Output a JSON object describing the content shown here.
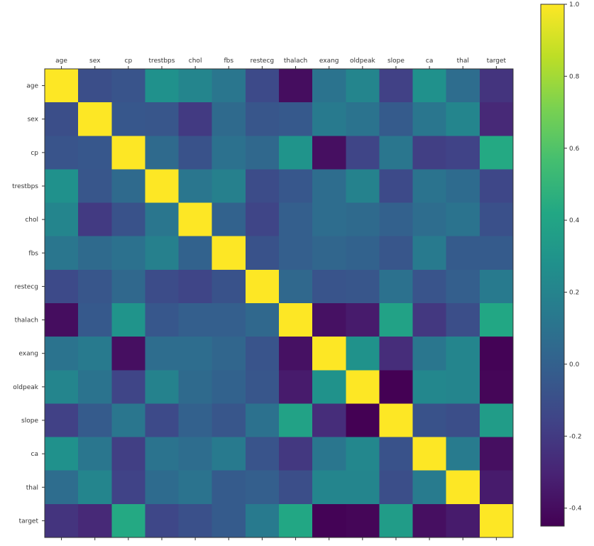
{
  "chart_data": {
    "type": "heatmap",
    "labels": [
      "age",
      "sex",
      "cp",
      "trestbps",
      "chol",
      "fbs",
      "restecg",
      "thalach",
      "exang",
      "oldpeak",
      "slope",
      "ca",
      "thal",
      "target"
    ],
    "matrix": [
      [
        1.0,
        -0.1,
        -0.07,
        0.28,
        0.21,
        0.12,
        -0.12,
        -0.4,
        0.1,
        0.21,
        -0.17,
        0.28,
        0.07,
        -0.23
      ],
      [
        -0.1,
        1.0,
        -0.05,
        -0.06,
        -0.2,
        0.05,
        -0.06,
        -0.04,
        0.14,
        0.1,
        -0.03,
        0.12,
        0.21,
        -0.28
      ],
      [
        -0.07,
        -0.05,
        1.0,
        0.05,
        -0.08,
        0.09,
        0.04,
        0.3,
        -0.39,
        -0.15,
        0.12,
        -0.18,
        -0.16,
        0.43
      ],
      [
        0.28,
        -0.06,
        0.05,
        1.0,
        0.12,
        0.18,
        -0.11,
        -0.05,
        0.07,
        0.19,
        -0.12,
        0.1,
        0.06,
        -0.14
      ],
      [
        0.21,
        -0.2,
        -0.08,
        0.12,
        1.0,
        0.01,
        -0.15,
        -0.01,
        0.07,
        0.05,
        -0.0,
        0.07,
        0.1,
        -0.09
      ],
      [
        0.12,
        0.05,
        0.09,
        0.18,
        0.01,
        1.0,
        -0.08,
        -0.01,
        0.03,
        0.01,
        -0.06,
        0.14,
        -0.03,
        -0.03
      ],
      [
        -0.12,
        -0.06,
        0.04,
        -0.11,
        -0.15,
        -0.08,
        1.0,
        0.04,
        -0.07,
        -0.06,
        0.09,
        -0.07,
        -0.01,
        0.14
      ],
      [
        -0.4,
        -0.04,
        0.3,
        -0.05,
        -0.01,
        -0.01,
        0.04,
        1.0,
        -0.38,
        -0.34,
        0.39,
        -0.21,
        -0.1,
        0.42
      ],
      [
        0.1,
        0.14,
        -0.39,
        0.07,
        0.07,
        0.03,
        -0.07,
        -0.38,
        1.0,
        0.29,
        -0.26,
        0.12,
        0.21,
        -0.44
      ],
      [
        0.21,
        0.1,
        -0.15,
        0.19,
        0.05,
        0.01,
        -0.06,
        -0.34,
        0.29,
        1.0,
        -0.58,
        0.22,
        0.21,
        -0.43
      ],
      [
        -0.17,
        -0.03,
        0.12,
        -0.12,
        -0.0,
        -0.06,
        0.09,
        0.39,
        -0.26,
        -0.58,
        1.0,
        -0.08,
        -0.1,
        0.35
      ],
      [
        0.28,
        0.12,
        -0.18,
        0.1,
        0.07,
        0.14,
        -0.07,
        -0.21,
        0.12,
        0.22,
        -0.08,
        1.0,
        0.15,
        -0.39
      ],
      [
        0.07,
        0.21,
        -0.16,
        0.06,
        0.1,
        -0.03,
        -0.01,
        -0.1,
        0.21,
        0.21,
        -0.1,
        0.15,
        1.0,
        -0.34
      ],
      [
        -0.23,
        -0.28,
        0.43,
        -0.14,
        -0.09,
        -0.03,
        0.14,
        0.42,
        -0.44,
        -0.43,
        0.35,
        -0.39,
        -0.34,
        1.0
      ]
    ],
    "colormap": "viridis",
    "colorbar": {
      "min": -0.45,
      "max": 1.0,
      "ticks": [
        1.0,
        0.8,
        0.6,
        0.4,
        0.2,
        0.0,
        -0.2,
        -0.4
      ],
      "tick_labels": [
        "1.0",
        "0.8",
        "0.6",
        "0.4",
        "0.2",
        "0.0",
        "-0.2",
        "-0.4"
      ]
    },
    "xlabel": "",
    "ylabel": "",
    "title": ""
  }
}
